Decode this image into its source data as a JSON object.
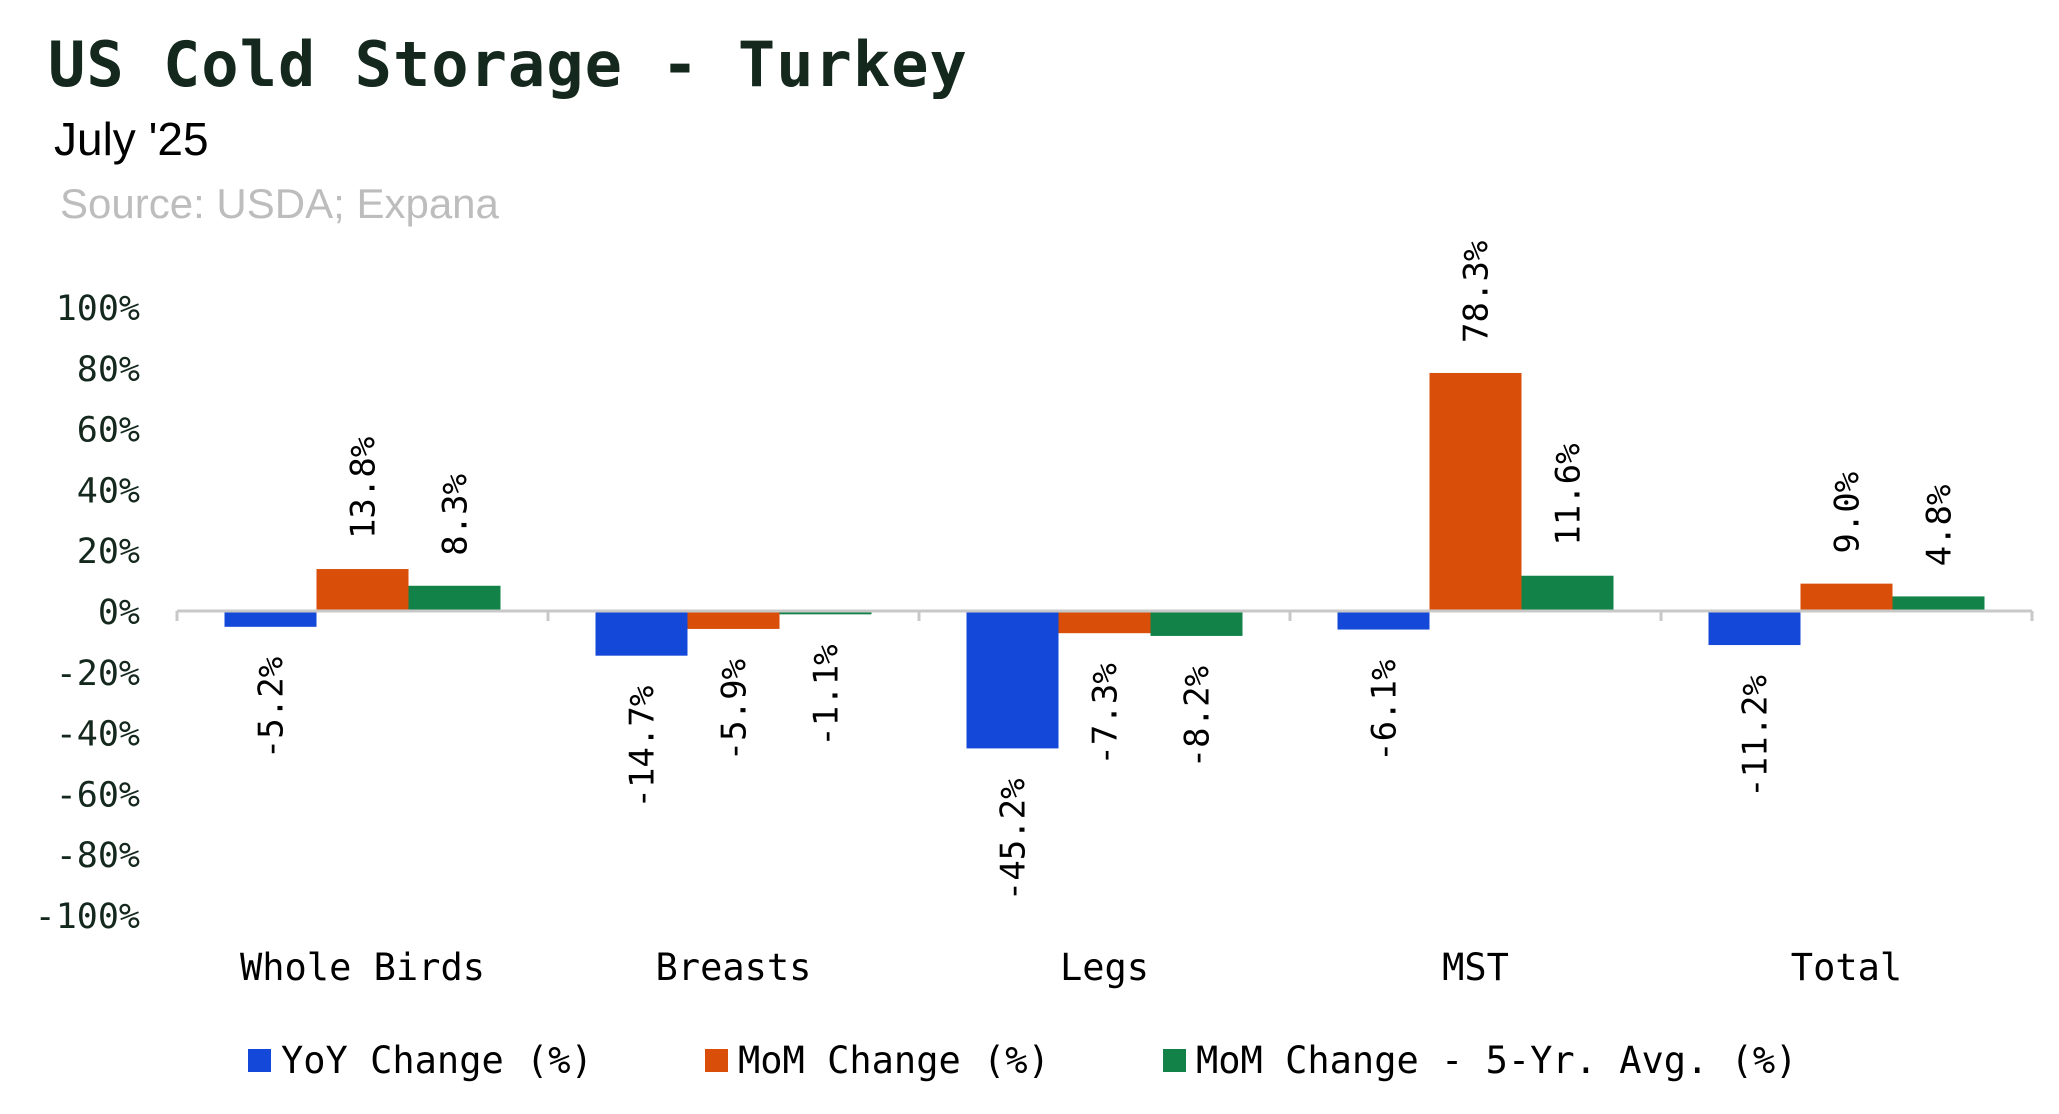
{
  "header": {
    "title": "US Cold Storage - Turkey",
    "subtitle": "July '25",
    "source": "Source: USDA; Expana"
  },
  "chart_data": {
    "type": "bar",
    "title": "US Cold Storage - Turkey",
    "subtitle": "July '25",
    "categories": [
      "Whole Birds",
      "Breasts",
      "Legs",
      "MST",
      "Total"
    ],
    "series": [
      {
        "name": "YoY Change (%)",
        "color": "#1448d8",
        "values": [
          -5.2,
          -14.7,
          -45.2,
          -6.1,
          -11.2
        ]
      },
      {
        "name": "MoM Change (%)",
        "color": "#d94e08",
        "values": [
          13.8,
          -5.9,
          -7.3,
          78.3,
          9.0
        ]
      },
      {
        "name": "MoM Change - 5-Yr. Avg. (%)",
        "color": "#128249",
        "values": [
          8.3,
          -1.1,
          -8.2,
          11.6,
          4.8
        ]
      }
    ],
    "ylim": [
      -100,
      100
    ],
    "yticks": [
      100,
      80,
      60,
      40,
      20,
      0,
      -20,
      -40,
      -60,
      -80,
      -100
    ],
    "ytick_labels": [
      "100%",
      "80%",
      "60%",
      "40%",
      "20%",
      "0%",
      "-20%",
      "-40%",
      "-60%",
      "-80%",
      "-100%"
    ],
    "data_labels": [
      [
        "-5.2%",
        "13.8%",
        "8.3%"
      ],
      [
        "-14.7%",
        "-5.9%",
        "-1.1%"
      ],
      [
        "-45.2%",
        "-7.3%",
        "-8.2%"
      ],
      [
        "-6.1%",
        "78.3%",
        "11.6%"
      ],
      [
        "-11.2%",
        "9.0%",
        "4.8%"
      ]
    ],
    "legend_position": "bottom",
    "grid": false,
    "axis_color": "#c8c8c8",
    "text_color": "#14281d"
  }
}
